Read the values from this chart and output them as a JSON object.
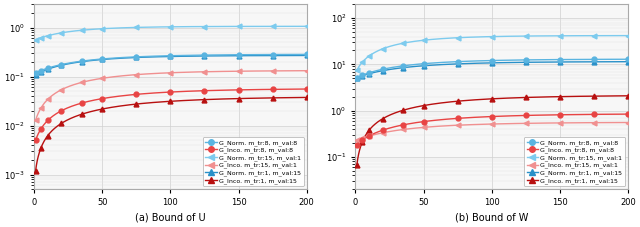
{
  "title_a": "(a) Bound of U",
  "title_b": "(b) Bound of W",
  "legend_labels": [
    "G_Norm. m_tr:8, m_val:8",
    "G_Inco. m_tr:8, m_val:8",
    "G_Norm. m_tr:15, m_val:1",
    "G_Inco. m_tr:15, m_val:1",
    "G_Norm. m_tr:1, m_val:15",
    "G_Inco. m_tr:1, m_val:15"
  ],
  "colors_blue": [
    "#5ab4e0",
    "#7dcbee",
    "#2990c8"
  ],
  "colors_red": [
    "#e84444",
    "#f09090",
    "#b81010"
  ],
  "figsize": [
    6.4,
    2.27
  ],
  "dpi": 100,
  "background": "#ffffff",
  "panel_bg": "#f7f7f7"
}
